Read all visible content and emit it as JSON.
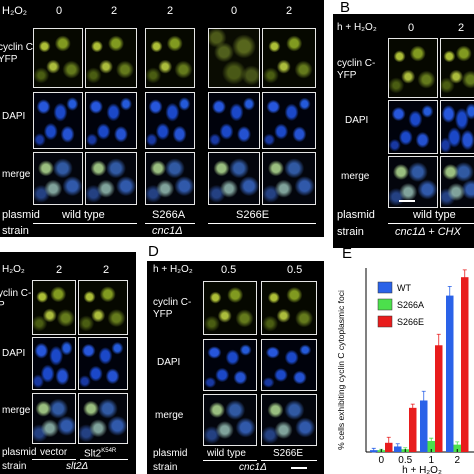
{
  "panel_A": {
    "treatment": "H₂O₂",
    "conditions": [
      "0",
      "2",
      "2",
      "0",
      "2"
    ],
    "rows": [
      "cyclin C-\nYFP",
      "DAPI",
      "merge"
    ],
    "plasmid_label": "plasmid",
    "strain_label": "strain",
    "plasmids": [
      "wild type",
      "S266A",
      "S266E"
    ],
    "strain": "cnc1Δ"
  },
  "panel_B": {
    "letter": "B",
    "treatment": "h + H₂O₂",
    "conditions": [
      "0",
      "2"
    ],
    "rows": [
      "cyclin C-\nYFP",
      "DAPI",
      "merge"
    ],
    "plasmid_label": "plasmid",
    "strain_label": "strain",
    "plasmid": "wild type",
    "strain": "cnc1Δ + CHX"
  },
  "panel_C": {
    "treatment": "H₂O₂",
    "conditions": [
      "2",
      "2"
    ],
    "rows": [
      "yclin C-\nP",
      "DAPI",
      "merge"
    ],
    "plasmid_label": "plasmid",
    "strain_label": "strain",
    "plasmids": [
      "vector",
      "Slt2"
    ],
    "plasmid_superscript": "K54R",
    "strain": "slt2Δ"
  },
  "panel_D": {
    "letter": "D",
    "treatment": "h + H₂O₂",
    "conditions": [
      "0.5",
      "0.5"
    ],
    "rows": [
      "cyclin C-\nYFP",
      "DAPI",
      "merge"
    ],
    "plasmid_label": "plasmid",
    "strain_label": "strain",
    "plasmids": [
      "wild type",
      "S266E"
    ],
    "strain": "cnc1Δ"
  },
  "panel_E": {
    "letter": "E",
    "colors": {
      "WT": "#2a62e8",
      "S266A": "#4ce04c",
      "S266E": "#e81c1c"
    }
  },
  "chart_data": {
    "type": "bar",
    "xlabel": "h + H₂O₂",
    "ylabel": "% cells exhibiting cyclin C cytoplasmic foci",
    "categories": [
      "0",
      "0.5",
      "1",
      "2"
    ],
    "series": [
      {
        "name": "WT",
        "values": [
          1,
          3,
          28,
          85
        ],
        "errors": [
          1,
          1.5,
          5,
          5
        ]
      },
      {
        "name": "S266A",
        "values": [
          1,
          1.5,
          6,
          4
        ],
        "errors": [
          0.5,
          0.8,
          1.5,
          1.5
        ]
      },
      {
        "name": "S266E",
        "values": [
          5,
          24,
          58,
          95
        ],
        "errors": [
          3,
          2,
          6,
          4
        ]
      }
    ],
    "ylim": [
      0,
      100
    ],
    "legend": "top-left"
  }
}
